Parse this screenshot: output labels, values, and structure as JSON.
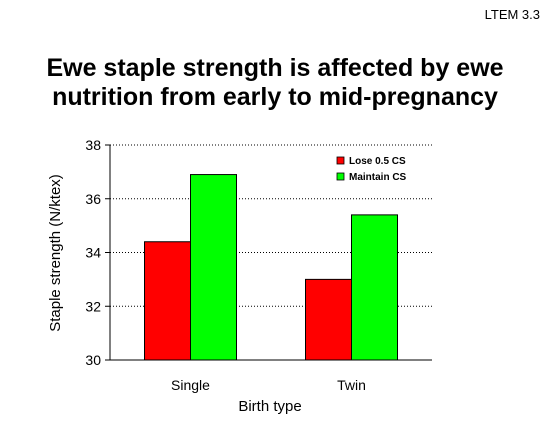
{
  "slide": {
    "ref": "LTEM 3.3",
    "title_lines": [
      "Ewe staple strength is affected by ewe",
      "nutrition from early to mid-pregnancy"
    ]
  },
  "chart_data": {
    "type": "bar",
    "title": "Ewe staple strength is affected by ewe nutrition from early to mid-pregnancy",
    "xlabel": "Birth type",
    "ylabel": "Staple strength (N/ktex)",
    "categories": [
      "Single",
      "Twin"
    ],
    "series": [
      {
        "name": "Lose 0.5 CS",
        "color": "#ff0000",
        "values": [
          34.4,
          33.0
        ]
      },
      {
        "name": "Maintain CS",
        "color": "#00ff00",
        "values": [
          36.9,
          35.4
        ]
      }
    ],
    "ylim": [
      30,
      38
    ],
    "yticks": [
      30,
      32,
      34,
      36,
      38
    ],
    "grid": "horizontal dotted",
    "legend": "top-right"
  }
}
